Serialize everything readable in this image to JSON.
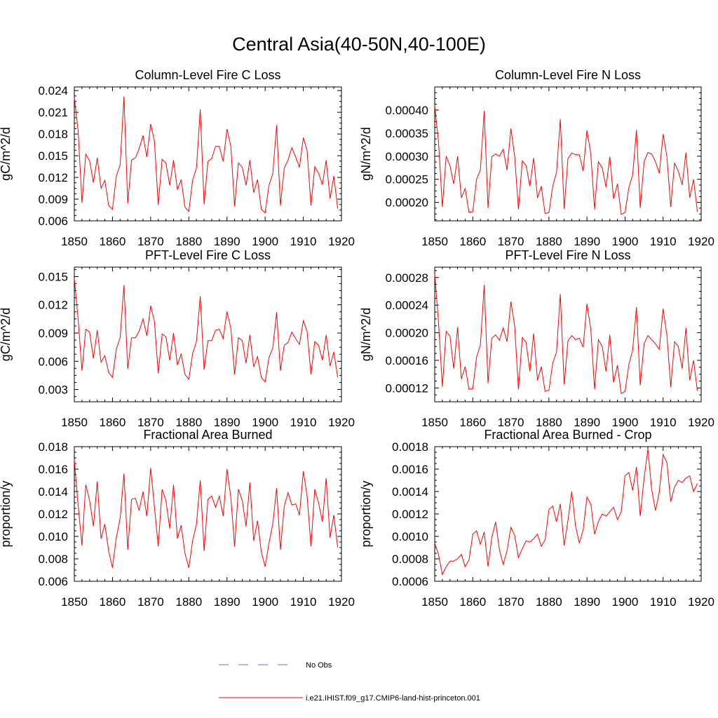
{
  "title": "Central Asia(40-50N,40-100E)",
  "legend": {
    "obs_label": "No Obs",
    "model_label": "i.e21.IHIST.f09_g17.CMIP6-land-hist-princeton.001",
    "obs_color": "#6f6fd0",
    "model_color": "#ff0000"
  },
  "chart_data": [
    {
      "type": "line",
      "title": "Column-Level Fire C Loss",
      "ylabel": "gC/m^2/d",
      "xlim": [
        1850,
        1920
      ],
      "ylim": [
        0.006,
        0.0245
      ],
      "xticks": [
        1850,
        1860,
        1870,
        1880,
        1890,
        1900,
        1910,
        1920
      ],
      "xtick_labels": [
        "1850",
        "1860",
        "1870",
        "1880",
        "1890",
        "1900",
        "1910",
        "1920"
      ],
      "yticks": [
        0.006,
        0.009,
        0.012,
        0.015,
        0.018,
        0.021,
        0.024
      ],
      "ytick_labels": [
        "0.006",
        "0.009",
        "0.012",
        "0.015",
        "0.018",
        "0.021",
        "0.024"
      ],
      "series": [
        {
          "color": "#ff0000",
          "x_start": 1850,
          "values": [
            0.023,
            0.0185,
            0.0085,
            0.0152,
            0.0143,
            0.0113,
            0.0147,
            0.0105,
            0.0116,
            0.0081,
            0.0076,
            0.0122,
            0.0137,
            0.0232,
            0.0084,
            0.0144,
            0.0147,
            0.016,
            0.0178,
            0.0148,
            0.0194,
            0.017,
            0.0082,
            0.0145,
            0.014,
            0.0109,
            0.0144,
            0.0103,
            0.0117,
            0.0079,
            0.0073,
            0.0116,
            0.0133,
            0.0214,
            0.0083,
            0.0142,
            0.0146,
            0.0163,
            0.0163,
            0.0142,
            0.0187,
            0.0163,
            0.008,
            0.014,
            0.0134,
            0.0109,
            0.0144,
            0.0099,
            0.0117,
            0.0076,
            0.0071,
            0.0109,
            0.0125,
            0.0192,
            0.0081,
            0.0133,
            0.0144,
            0.0161,
            0.0148,
            0.0134,
            0.0175,
            0.0157,
            0.0081,
            0.0135,
            0.0126,
            0.011,
            0.0144,
            0.0091,
            0.0122,
            0.0077
          ]
        }
      ]
    },
    {
      "type": "line",
      "title": "Column-Level Fire N Loss",
      "ylabel": "gN/m^2/d",
      "xlim": [
        1850,
        1920
      ],
      "ylim": [
        0.00016,
        0.00045
      ],
      "xticks": [
        1850,
        1860,
        1870,
        1880,
        1890,
        1900,
        1910,
        1920
      ],
      "xtick_labels": [
        "1850",
        "1860",
        "1870",
        "1880",
        "1890",
        "1900",
        "1910",
        "1920"
      ],
      "yticks": [
        0.0002,
        0.00025,
        0.0003,
        0.00035,
        0.0004
      ],
      "ytick_labels": [
        "0.00020",
        "0.00025",
        "0.00030",
        "0.00035",
        "0.00040"
      ],
      "series": [
        {
          "color": "#ff0000",
          "x_start": 1850,
          "values": [
            0.00041,
            0.00033,
            0.00019,
            0.0003,
            0.00028,
            0.00024,
            0.0003,
            0.00021,
            0.00023,
            0.000178,
            0.00018,
            0.00025,
            0.00027,
            0.000398,
            0.000188,
            0.000299,
            0.000305,
            0.0003,
            0.000315,
            0.00027,
            0.00036,
            0.0003,
            0.000185,
            0.00029,
            0.00028,
            0.000235,
            0.000296,
            0.00021,
            0.000235,
            0.000176,
            0.000178,
            0.000235,
            0.000265,
            0.00038,
            0.000186,
            0.000295,
            0.000307,
            0.000303,
            0.000303,
            0.000268,
            0.000356,
            0.000305,
            0.000185,
            0.000288,
            0.000275,
            0.000233,
            0.000299,
            0.000208,
            0.00024,
            0.000174,
            0.000178,
            0.000232,
            0.00026,
            0.000357,
            0.000188,
            0.000288,
            0.000308,
            0.000305,
            0.000288,
            0.000263,
            0.000348,
            0.0003,
            0.00019,
            0.000285,
            0.000268,
            0.000238,
            0.000308,
            0.00021,
            0.00025,
            0.00018
          ]
        }
      ]
    },
    {
      "type": "line",
      "title": "PFT-Level Fire C Loss",
      "ylabel": "gC/m^2/d",
      "xlim": [
        1850,
        1920
      ],
      "ylim": [
        0.0017,
        0.016
      ],
      "xticks": [
        1850,
        1860,
        1870,
        1880,
        1890,
        1900,
        1910,
        1920
      ],
      "xtick_labels": [
        "1850",
        "1860",
        "1870",
        "1880",
        "1890",
        "1900",
        "1910",
        "1920"
      ],
      "yticks": [
        0.003,
        0.006,
        0.009,
        0.012,
        0.015
      ],
      "ytick_labels": [
        "0.003",
        "0.006",
        "0.009",
        "0.012",
        "0.015"
      ],
      "series": [
        {
          "color": "#ff0000",
          "x_start": 1850,
          "values": [
            0.0148,
            0.0105,
            0.005,
            0.0094,
            0.0091,
            0.0063,
            0.0093,
            0.0059,
            0.0066,
            0.0048,
            0.0043,
            0.0073,
            0.0085,
            0.0141,
            0.0052,
            0.0085,
            0.0085,
            0.0092,
            0.0105,
            0.0087,
            0.0119,
            0.0102,
            0.0047,
            0.0089,
            0.0086,
            0.0061,
            0.009,
            0.0056,
            0.0068,
            0.0046,
            0.0041,
            0.0068,
            0.0081,
            0.0129,
            0.0051,
            0.0082,
            0.0082,
            0.0093,
            0.0094,
            0.0084,
            0.0113,
            0.0095,
            0.0046,
            0.0085,
            0.0082,
            0.0058,
            0.0088,
            0.0054,
            0.0065,
            0.0043,
            0.0038,
            0.0064,
            0.0074,
            0.0112,
            0.005,
            0.0077,
            0.008,
            0.0091,
            0.0084,
            0.0078,
            0.0103,
            0.0092,
            0.0046,
            0.0081,
            0.0077,
            0.0061,
            0.0088,
            0.0055,
            0.007,
            0.0043
          ]
        }
      ]
    },
    {
      "type": "line",
      "title": "PFT-Level Fire N Loss",
      "ylabel": "gN/m^2/d",
      "xlim": [
        1850,
        1920
      ],
      "ylim": [
        0.0001,
        0.000295
      ],
      "xticks": [
        1850,
        1860,
        1870,
        1880,
        1890,
        1900,
        1910,
        1920
      ],
      "xtick_labels": [
        "1850",
        "1860",
        "1870",
        "1880",
        "1890",
        "1900",
        "1910",
        "1920"
      ],
      "yticks": [
        0.00012,
        0.00016,
        0.0002,
        0.00024,
        0.00028
      ],
      "ytick_labels": [
        "0.00012",
        "0.00016",
        "0.00020",
        "0.00024",
        "0.00028"
      ],
      "series": [
        {
          "color": "#ff0000",
          "x_start": 1850,
          "values": [
            0.000285,
            0.000215,
            0.000122,
            0.000202,
            0.000195,
            0.000148,
            0.000208,
            0.000133,
            0.000151,
            0.000118,
            0.000119,
            0.000165,
            0.000182,
            0.000269,
            0.000127,
            0.000192,
            0.000197,
            0.000189,
            0.000207,
            0.000187,
            0.000245,
            0.00021,
            0.000118,
            0.000193,
            0.000186,
            0.000144,
            0.000199,
            0.000131,
            0.000151,
            0.000115,
            0.000117,
            0.000156,
            0.000172,
            0.000256,
            0.000125,
            0.000188,
            0.000196,
            0.00019,
            0.000192,
            0.000179,
            0.000242,
            0.000205,
            0.000118,
            0.00019,
            0.00018,
            0.000144,
            0.000197,
            0.000128,
            0.000153,
            0.000112,
            0.000115,
            0.000154,
            0.000175,
            0.000237,
            0.000124,
            0.000184,
            0.000196,
            0.00019,
            0.000184,
            0.000176,
            0.000235,
            0.000197,
            0.000121,
            0.000187,
            0.00018,
            0.000148,
            0.000207,
            0.000131,
            0.00016,
            0.000116
          ]
        }
      ]
    },
    {
      "type": "line",
      "title": "Fractional Area Burned",
      "ylabel": "proportion/y",
      "xlim": [
        1850,
        1920
      ],
      "ylim": [
        0.006,
        0.018
      ],
      "xticks": [
        1850,
        1860,
        1870,
        1880,
        1890,
        1900,
        1910,
        1920
      ],
      "xtick_labels": [
        "1850",
        "1860",
        "1870",
        "1880",
        "1890",
        "1900",
        "1910",
        "1920"
      ],
      "yticks": [
        0.006,
        0.008,
        0.01,
        0.012,
        0.014,
        0.016,
        0.018
      ],
      "ytick_labels": [
        "0.006",
        "0.008",
        "0.010",
        "0.012",
        "0.014",
        "0.016",
        "0.018"
      ],
      "series": [
        {
          "color": "#ff0000",
          "x_start": 1850,
          "values": [
            0.0168,
            0.0128,
            0.0092,
            0.0146,
            0.0132,
            0.0109,
            0.0149,
            0.0098,
            0.0111,
            0.0087,
            0.0072,
            0.0099,
            0.0116,
            0.0156,
            0.0088,
            0.0133,
            0.0134,
            0.0123,
            0.014,
            0.0118,
            0.0161,
            0.0126,
            0.0091,
            0.0142,
            0.0132,
            0.0107,
            0.0146,
            0.0098,
            0.011,
            0.0085,
            0.0072,
            0.0096,
            0.0111,
            0.015,
            0.0087,
            0.0133,
            0.0136,
            0.0126,
            0.0136,
            0.0118,
            0.016,
            0.0135,
            0.0091,
            0.0142,
            0.0132,
            0.0109,
            0.0148,
            0.0096,
            0.0114,
            0.0086,
            0.0073,
            0.0094,
            0.0111,
            0.0143,
            0.0088,
            0.0127,
            0.0139,
            0.0128,
            0.0129,
            0.0119,
            0.0158,
            0.0136,
            0.0091,
            0.0142,
            0.013,
            0.0113,
            0.0152,
            0.0099,
            0.0119,
            0.009
          ]
        }
      ]
    },
    {
      "type": "line",
      "title": "Fractional Area Burned - Crop",
      "ylabel": "proportion/y",
      "xlim": [
        1850,
        1920
      ],
      "ylim": [
        0.0006,
        0.0018
      ],
      "xticks": [
        1850,
        1860,
        1870,
        1880,
        1890,
        1900,
        1910,
        1920
      ],
      "xtick_labels": [
        "1850",
        "1860",
        "1870",
        "1880",
        "1890",
        "1900",
        "1910",
        "1920"
      ],
      "yticks": [
        0.0006,
        0.0008,
        0.001,
        0.0012,
        0.0014,
        0.0016,
        0.0018
      ],
      "ytick_labels": [
        "0.0006",
        "0.0008",
        "0.0010",
        "0.0012",
        "0.0014",
        "0.0016",
        "0.0018"
      ],
      "series": [
        {
          "color": "#ff0000",
          "x_start": 1850,
          "values": [
            0.00094,
            0.00084,
            0.00066,
            0.00073,
            0.00078,
            0.00078,
            0.0008,
            0.00084,
            0.00073,
            0.00079,
            0.00102,
            0.00105,
            0.00093,
            0.00104,
            0.00073,
            0.00099,
            0.00113,
            0.00088,
            0.00075,
            0.00087,
            0.00108,
            0.00101,
            0.00081,
            0.00089,
            0.00096,
            0.00095,
            0.00098,
            0.00102,
            0.00091,
            0.00097,
            0.00124,
            0.00127,
            0.00113,
            0.00129,
            0.00092,
            0.00114,
            0.0014,
            0.00109,
            0.00094,
            0.00106,
            0.00135,
            0.00129,
            0.00102,
            0.00113,
            0.0012,
            0.00118,
            0.00122,
            0.00126,
            0.00115,
            0.00122,
            0.00154,
            0.00157,
            0.00141,
            0.00162,
            0.00118,
            0.00152,
            0.00178,
            0.00142,
            0.00123,
            0.0014,
            0.00173,
            0.00166,
            0.00131,
            0.00144,
            0.0015,
            0.00148,
            0.00152,
            0.00154,
            0.0014,
            0.00147
          ]
        }
      ]
    }
  ]
}
